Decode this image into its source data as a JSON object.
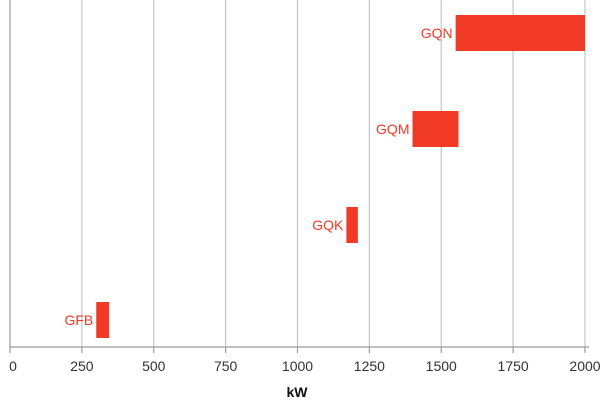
{
  "chart_data": {
    "type": "bar",
    "orientation": "horizontal-range",
    "xlabel": "kW",
    "xlim": [
      0,
      2000
    ],
    "xticks": [
      0,
      250,
      500,
      750,
      1000,
      1250,
      1500,
      1750,
      2000
    ],
    "grid": true,
    "legend": "none",
    "series": [
      {
        "categories": [
          "GQN",
          "GQM",
          "GQK",
          "GFB"
        ],
        "start": [
          1550,
          1400,
          1170,
          300
        ],
        "end": [
          2000,
          1560,
          1210,
          345
        ]
      }
    ],
    "colors": {
      "bar": "#f03a26",
      "label": "#f03a26",
      "grid": "#c4c4c4",
      "axis": "#9a9a9a"
    }
  }
}
